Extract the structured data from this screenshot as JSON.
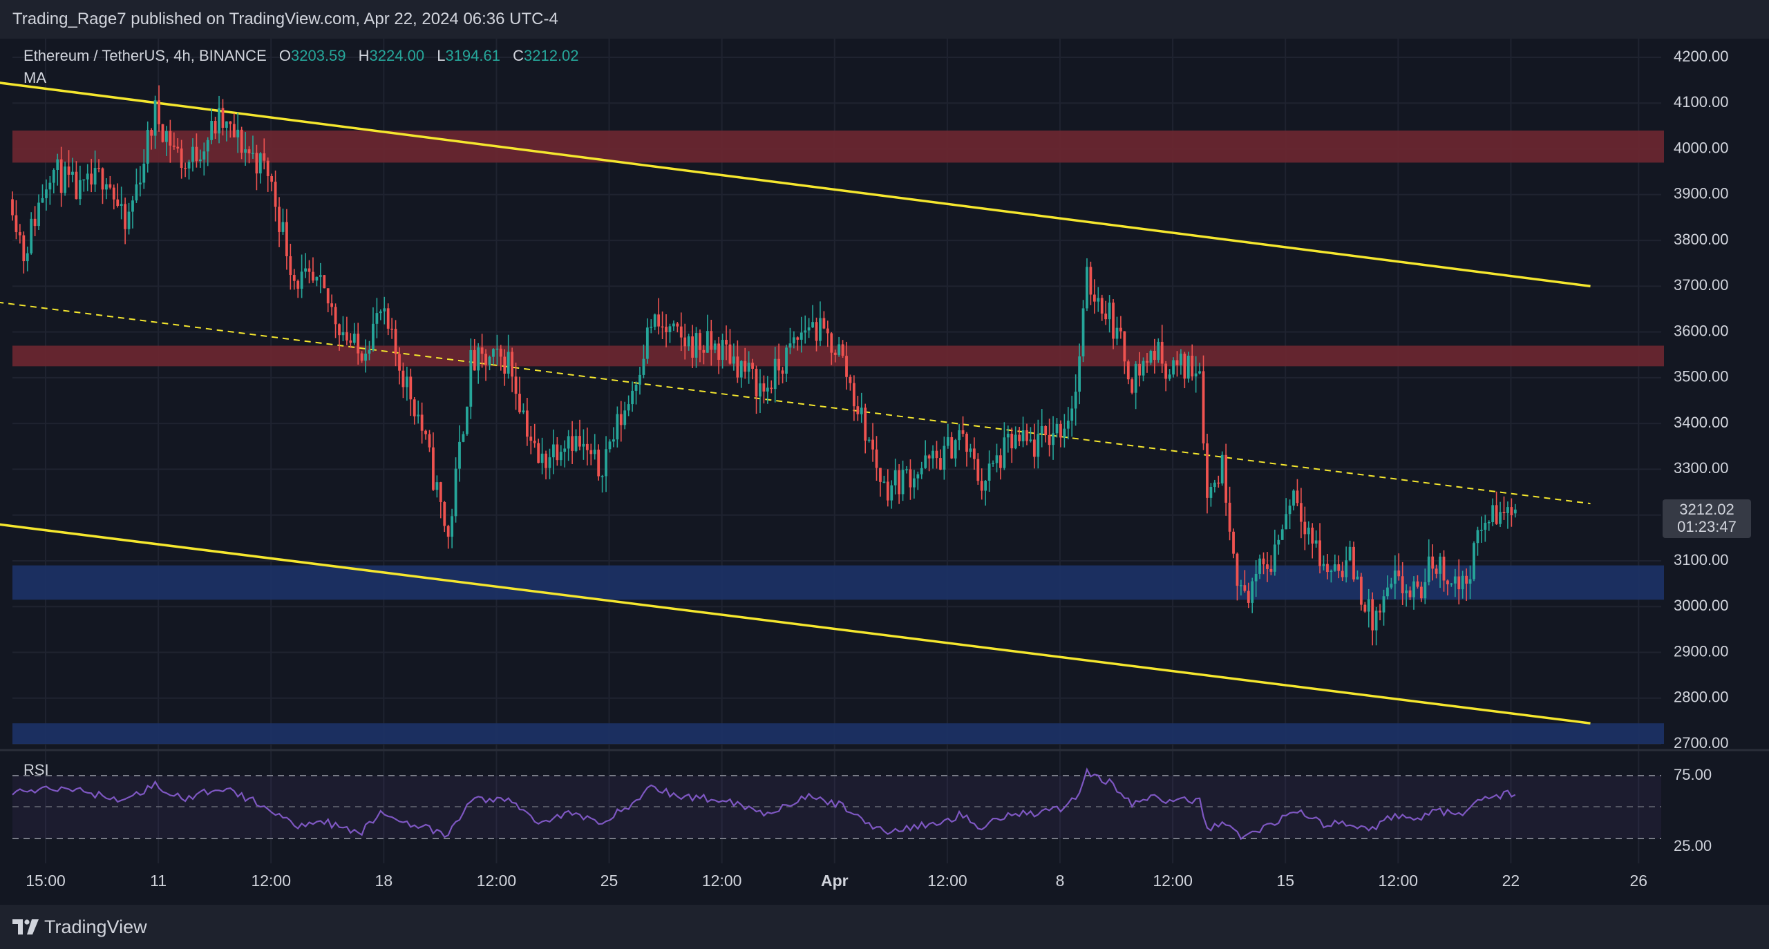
{
  "header": {
    "published_by": "Trading_Rage7 published on TradingView.com, Apr 22, 2024 06:36 UTC-4"
  },
  "legend": {
    "symbol": "Ethereum / TetherUS, 4h, BINANCE",
    "open_label": "O",
    "open": "3203.59",
    "high_label": "H",
    "high": "3224.00",
    "low_label": "L",
    "low": "3194.61",
    "close_label": "C",
    "close": "3212.02",
    "ma": "MA"
  },
  "last_price": {
    "price": "3212.02",
    "countdown": "01:23:47"
  },
  "rsi": {
    "label": "RSI",
    "upper": "75.00",
    "lower": "25.00"
  },
  "footer": {
    "brand": "TradingView"
  },
  "colors": {
    "up": "#26a69a",
    "down": "#ef5350",
    "channel": "#f5e72e",
    "resistance_zone": "#6b2731",
    "support_zone": "#1c3266",
    "rsi_line": "#7e57c2"
  },
  "chart_data": {
    "type": "candlestick",
    "symbol": "ETH/USDT",
    "timeframe": "4h",
    "y_axis": {
      "ticks": [
        4200,
        4100,
        4000,
        3900,
        3800,
        3700,
        3600,
        3500,
        3400,
        3300,
        3200,
        3100,
        3000,
        2900,
        2800,
        2700
      ],
      "tick_labels": [
        "4200.00",
        "4100.00",
        "4000.00",
        "3900.00",
        "3800.00",
        "3700.00",
        "3600.00",
        "3500.00",
        "3400.00",
        "3300.00",
        "3200.00",
        "3100.00",
        "3000.00",
        "2900.00",
        "2800.00",
        "2700.00"
      ],
      "range": [
        2700,
        4240
      ]
    },
    "x_axis": {
      "tick_labels": [
        "15:00",
        "11",
        "12:00",
        "18",
        "12:00",
        "25",
        "12:00",
        "Apr",
        "12:00",
        "8",
        "12:00",
        "15",
        "12:00",
        "22",
        "26"
      ],
      "tick_bar_index": [
        0,
        30,
        60,
        90,
        120,
        150,
        180,
        210,
        240,
        270,
        300,
        330,
        360,
        390,
        424
      ]
    },
    "zones": [
      {
        "name": "resistance",
        "low": 3970,
        "high": 4040
      },
      {
        "name": "resistance",
        "low": 3525,
        "high": 3570
      },
      {
        "name": "support",
        "low": 3015,
        "high": 3090
      },
      {
        "name": "support",
        "low": 2700,
        "high": 2745
      }
    ],
    "trendlines": [
      {
        "style": "solid",
        "from": {
          "bar": -4,
          "price": 4145
        },
        "to": {
          "bar": 420,
          "price": 3700
        }
      },
      {
        "style": "solid",
        "from": {
          "bar": -4,
          "price": 3180
        },
        "to": {
          "bar": 420,
          "price": 2745
        }
      },
      {
        "style": "dashed",
        "from": {
          "bar": -4,
          "price": 3665
        },
        "to": {
          "bar": 420,
          "price": 3225
        }
      }
    ],
    "price_anchors": [
      [
        0,
        3890
      ],
      [
        3,
        3770
      ],
      [
        10,
        3960
      ],
      [
        18,
        3900
      ],
      [
        25,
        3950
      ],
      [
        30,
        3820
      ],
      [
        38,
        4080
      ],
      [
        46,
        3960
      ],
      [
        55,
        4060
      ],
      [
        68,
        3950
      ],
      [
        75,
        3720
      ],
      [
        82,
        3690
      ],
      [
        92,
        3550
      ],
      [
        98,
        3640
      ],
      [
        108,
        3420
      ],
      [
        116,
        3150
      ],
      [
        122,
        3530
      ],
      [
        132,
        3540
      ],
      [
        140,
        3310
      ],
      [
        148,
        3380
      ],
      [
        156,
        3300
      ],
      [
        164,
        3450
      ],
      [
        170,
        3620
      ],
      [
        178,
        3580
      ],
      [
        190,
        3560
      ],
      [
        200,
        3470
      ],
      [
        212,
        3620
      ],
      [
        220,
        3560
      ],
      [
        232,
        3260
      ],
      [
        248,
        3330
      ],
      [
        252,
        3380
      ],
      [
        258,
        3270
      ],
      [
        266,
        3360
      ],
      [
        272,
        3350
      ],
      [
        280,
        3400
      ],
      [
        283,
        3470
      ],
      [
        286,
        3710
      ],
      [
        292,
        3640
      ],
      [
        298,
        3500
      ],
      [
        304,
        3560
      ],
      [
        308,
        3520
      ],
      [
        316,
        3530
      ],
      [
        318,
        3240
      ],
      [
        322,
        3310
      ],
      [
        327,
        3020
      ],
      [
        335,
        3100
      ],
      [
        341,
        3260
      ],
      [
        349,
        3080
      ],
      [
        356,
        3100
      ],
      [
        362,
        2960
      ],
      [
        368,
        3050
      ],
      [
        374,
        3020
      ],
      [
        378,
        3100
      ],
      [
        386,
        3040
      ],
      [
        392,
        3190
      ],
      [
        400,
        3210
      ]
    ],
    "rsi_anchors": [
      [
        0,
        62
      ],
      [
        15,
        65
      ],
      [
        30,
        55
      ],
      [
        38,
        68
      ],
      [
        46,
        55
      ],
      [
        55,
        66
      ],
      [
        68,
        50
      ],
      [
        75,
        35
      ],
      [
        82,
        40
      ],
      [
        92,
        28
      ],
      [
        98,
        45
      ],
      [
        108,
        35
      ],
      [
        116,
        27
      ],
      [
        122,
        56
      ],
      [
        132,
        56
      ],
      [
        140,
        38
      ],
      [
        148,
        45
      ],
      [
        156,
        38
      ],
      [
        164,
        50
      ],
      [
        170,
        66
      ],
      [
        178,
        58
      ],
      [
        190,
        56
      ],
      [
        200,
        45
      ],
      [
        212,
        58
      ],
      [
        220,
        52
      ],
      [
        232,
        30
      ],
      [
        248,
        38
      ],
      [
        252,
        44
      ],
      [
        258,
        34
      ],
      [
        266,
        46
      ],
      [
        272,
        45
      ],
      [
        280,
        50
      ],
      [
        283,
        57
      ],
      [
        286,
        78
      ],
      [
        292,
        70
      ],
      [
        298,
        52
      ],
      [
        304,
        58
      ],
      [
        308,
        55
      ],
      [
        316,
        55
      ],
      [
        318,
        33
      ],
      [
        322,
        38
      ],
      [
        327,
        26
      ],
      [
        335,
        36
      ],
      [
        341,
        48
      ],
      [
        349,
        36
      ],
      [
        356,
        38
      ],
      [
        362,
        32
      ],
      [
        368,
        44
      ],
      [
        374,
        40
      ],
      [
        378,
        48
      ],
      [
        386,
        43
      ],
      [
        392,
        58
      ],
      [
        400,
        61
      ]
    ],
    "last": {
      "open": 3203.59,
      "high": 3224.0,
      "low": 3194.61,
      "close": 3212.02
    },
    "rsi_levels": {
      "upper": 75,
      "middle": 50,
      "lower": 25
    }
  }
}
